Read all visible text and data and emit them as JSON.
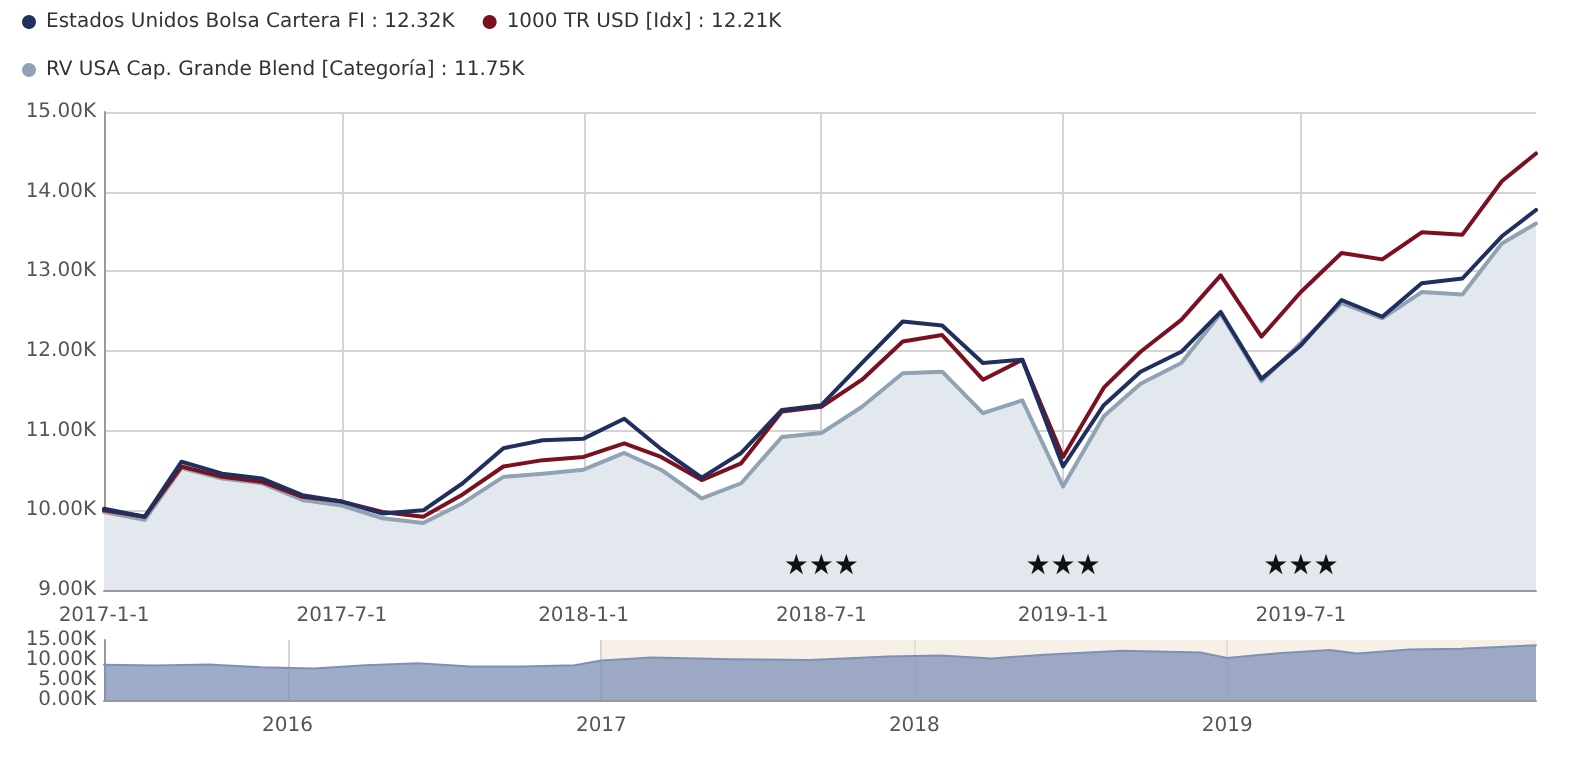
{
  "chart_data": [
    {
      "type": "line",
      "x": [
        "2017-01-01",
        "2017-02-01",
        "2017-03-01",
        "2017-04-01",
        "2017-05-01",
        "2017-06-01",
        "2017-07-01",
        "2017-08-01",
        "2017-09-01",
        "2017-10-01",
        "2017-11-01",
        "2017-12-01",
        "2018-01-01",
        "2018-02-01",
        "2018-03-01",
        "2018-04-01",
        "2018-05-01",
        "2018-06-01",
        "2018-07-01",
        "2018-08-01",
        "2018-09-01",
        "2018-10-01",
        "2018-11-01",
        "2018-12-01",
        "2019-01-01",
        "2019-02-01",
        "2019-03-01",
        "2019-04-01",
        "2019-05-01",
        "2019-06-01",
        "2019-07-01",
        "2019-08-01",
        "2019-09-01",
        "2019-10-01",
        "2019-11-01",
        "2019-12-01",
        "2019-12-27"
      ],
      "series": [
        {
          "name": "RV USA Cap. Grande Blend [Categoría] : 11.75K",
          "type": "area",
          "color": "#8fa3b5",
          "values": [
            9.98,
            9.88,
            10.53,
            10.4,
            10.34,
            10.13,
            10.06,
            9.9,
            9.84,
            10.09,
            10.42,
            10.46,
            10.51,
            10.72,
            10.51,
            10.15,
            10.34,
            10.92,
            10.97,
            11.3,
            11.72,
            11.74,
            11.22,
            11.38,
            10.3,
            11.18,
            11.59,
            11.85,
            12.47,
            11.62,
            12.1,
            12.6,
            12.41,
            12.74,
            12.71,
            13.35,
            13.6
          ]
        },
        {
          "name": "1000 TR USD [Idx] : 12.21K",
          "color": "#7a1020",
          "values": [
            10.0,
            9.92,
            10.55,
            10.42,
            10.36,
            10.17,
            10.11,
            9.98,
            9.92,
            10.2,
            10.55,
            10.63,
            10.67,
            10.84,
            10.67,
            10.38,
            10.59,
            11.24,
            11.3,
            11.64,
            12.12,
            12.2,
            11.64,
            11.89,
            10.67,
            11.54,
            11.99,
            12.39,
            12.95,
            12.18,
            12.74,
            13.23,
            13.15,
            13.49,
            13.46,
            14.13,
            14.48
          ]
        },
        {
          "name": "Estados Unidos Bolsa Cartera FI : 12.32K",
          "color": "#1f2f5e",
          "values": [
            10.02,
            9.92,
            10.61,
            10.46,
            10.4,
            10.19,
            10.11,
            9.96,
            10.0,
            10.34,
            10.78,
            10.88,
            10.9,
            11.15,
            10.77,
            10.41,
            10.72,
            11.26,
            11.32,
            11.85,
            12.37,
            12.32,
            11.85,
            11.89,
            10.55,
            11.32,
            11.74,
            11.99,
            12.49,
            11.65,
            12.07,
            12.64,
            12.43,
            12.85,
            12.91,
            13.44,
            13.77
          ]
        }
      ],
      "xlim": [
        "2017-01-01",
        "2019-12-27"
      ],
      "xticks": [
        {
          "value": "2017-01-01",
          "label": "2017-1-1"
        },
        {
          "value": "2017-07-01",
          "label": "2017-7-1"
        },
        {
          "value": "2018-01-01",
          "label": "2018-1-1"
        },
        {
          "value": "2018-07-01",
          "label": "2018-7-1"
        },
        {
          "value": "2019-01-01",
          "label": "2019-1-1"
        },
        {
          "value": "2019-07-01",
          "label": "2019-7-1"
        }
      ],
      "ylim": [
        9,
        15
      ],
      "yticks": [
        {
          "value": 9,
          "label": "9.00K"
        },
        {
          "value": 10,
          "label": "10.00K"
        },
        {
          "value": 11,
          "label": "11.00K"
        },
        {
          "value": 12,
          "label": "12.00K"
        },
        {
          "value": 13,
          "label": "13.00K"
        },
        {
          "value": 14,
          "label": "14.00K"
        },
        {
          "value": 15,
          "label": "15.00K"
        }
      ],
      "annotations": [
        "★★★",
        "★★★",
        "★★★"
      ],
      "grid": true,
      "legend": "top left",
      "marker": "none",
      "line_style": "solid"
    },
    {
      "type": "area",
      "x": [
        "2015-06-01",
        "2015-08-01",
        "2015-10-01",
        "2015-12-01",
        "2016-02-01",
        "2016-04-01",
        "2016-06-01",
        "2016-08-01",
        "2016-10-01",
        "2016-12-01",
        "2017-01-01",
        "2017-03-01",
        "2017-06-01",
        "2017-09-01",
        "2017-12-01",
        "2018-02-01",
        "2018-04-01",
        "2018-06-01",
        "2018-09-01",
        "2018-12-01",
        "2019-01-01",
        "2019-03-01",
        "2019-05-01",
        "2019-06-01",
        "2019-08-01",
        "2019-10-01",
        "2019-12-27"
      ],
      "series": [
        {
          "color": "#7e90b8",
          "values": [
            8.8,
            8.6,
            8.9,
            8.2,
            7.9,
            8.7,
            9.2,
            8.4,
            8.4,
            8.7,
            9.9,
            10.6,
            10.2,
            10.0,
            10.9,
            11.1,
            10.4,
            11.3,
            12.3,
            11.9,
            10.5,
            11.7,
            12.5,
            11.6,
            12.6,
            12.8,
            13.7
          ]
        }
      ],
      "xlim": [
        "2015-06-01",
        "2019-12-27"
      ],
      "xticks": [
        {
          "value": "2016-01-01",
          "label": "2016"
        },
        {
          "value": "2017-01-01",
          "label": "2017"
        },
        {
          "value": "2018-01-01",
          "label": "2018"
        },
        {
          "value": "2019-01-01",
          "label": "2019"
        }
      ],
      "ylim": [
        0,
        15
      ],
      "yticks": [
        {
          "value": 0,
          "label": "0.00K"
        },
        {
          "value": 5,
          "label": "5.00K"
        },
        {
          "value": 10,
          "label": "10.00K"
        },
        {
          "value": 15,
          "label": "15.00K"
        }
      ],
      "bands": [
        {
          "axis": "x",
          "from": "2017-01-01",
          "to": "2019-12-27",
          "color": "#f2e6d6"
        }
      ],
      "grid": "x",
      "legend": false,
      "marker": "none"
    }
  ]
}
